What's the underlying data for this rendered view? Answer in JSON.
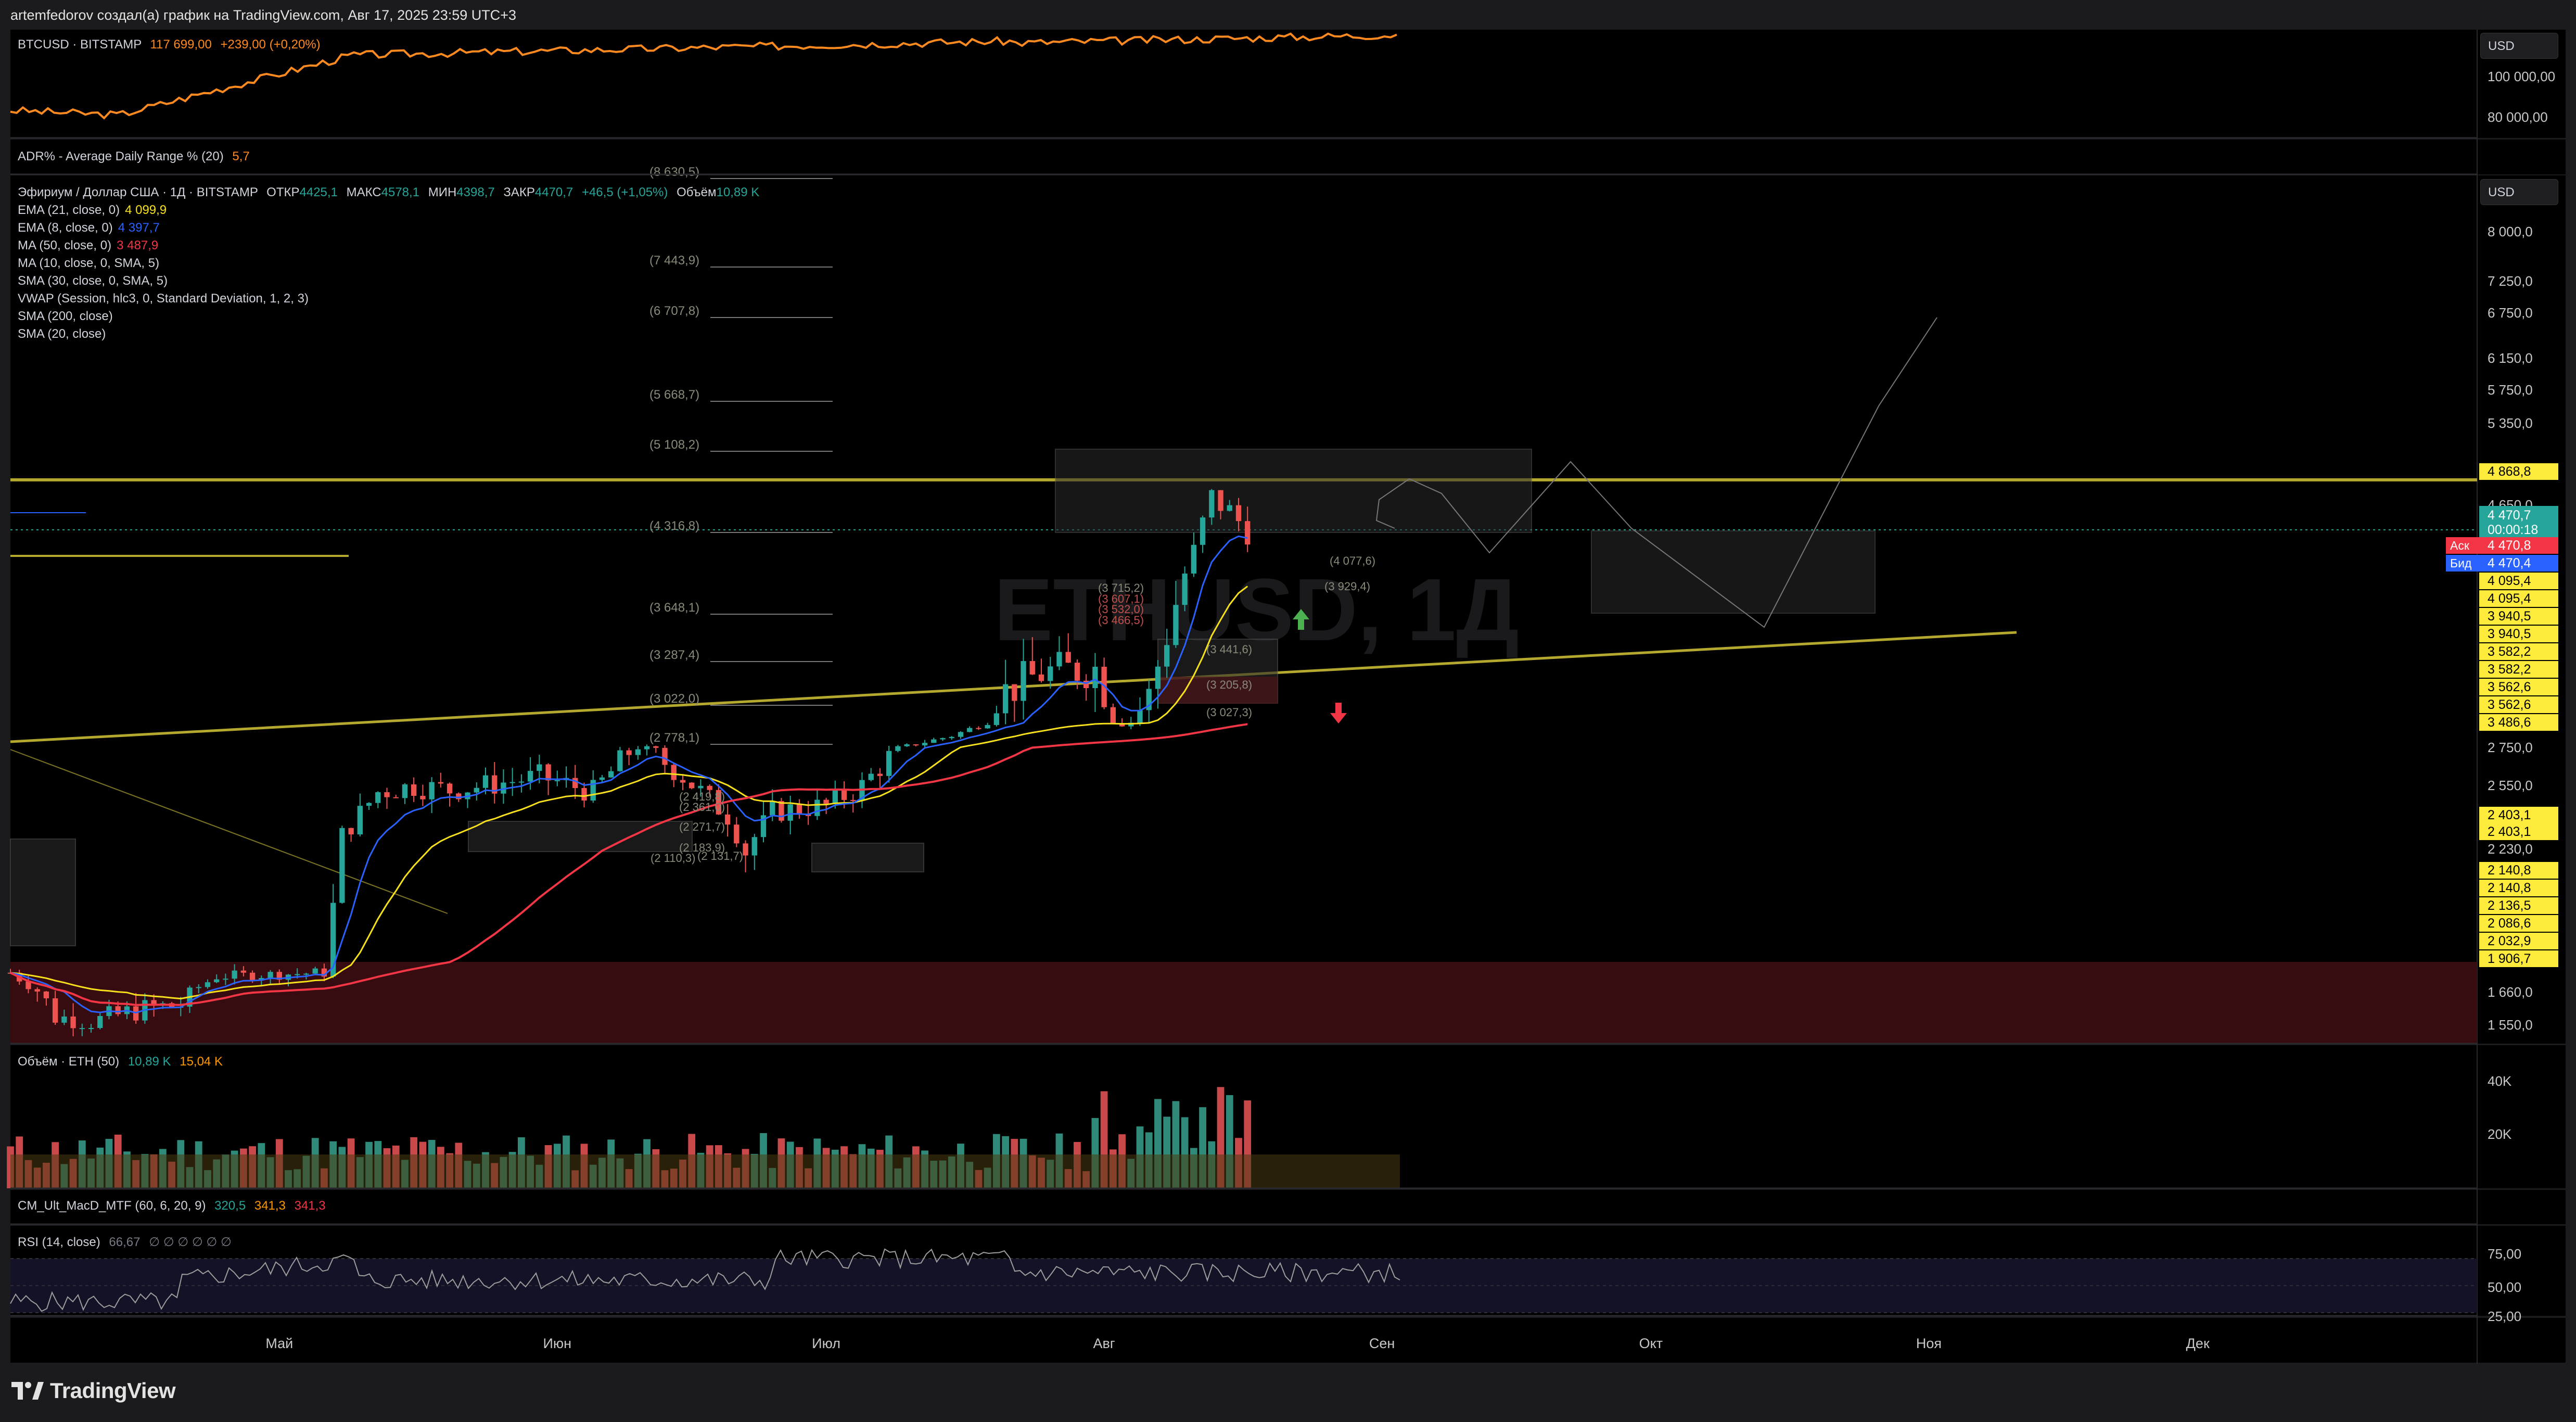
{
  "header": {
    "author_line": "artemfedorov создал(а) график на TradingView.com, Авг 17, 2025 23:59 UTC+3"
  },
  "btc_pane": {
    "label": "BTCUSD · BITSTAMP",
    "price": "117 699,00",
    "change": "+239,00 (+0,20%)",
    "currency": "USD",
    "ticks": [
      "100 000,00",
      "80 000,00"
    ],
    "color": "#ff8a1f"
  },
  "adr_pane": {
    "label": "ADR% - Average Daily Range % (20)",
    "value": "5,7"
  },
  "main_pane": {
    "currency": "USD",
    "title": "Эфириум / Доллар США · 1Д · BITSTAMP",
    "ohlc": [
      {
        "k": "ОТКР",
        "v": "4425,1"
      },
      {
        "k": "МАКС",
        "v": "4578,1"
      },
      {
        "k": "МИН",
        "v": "4398,7"
      },
      {
        "k": "ЗАКР",
        "v": "4470,7"
      }
    ],
    "change": "+46,5 (+1,05%)",
    "volume_label": "Объём",
    "volume_value": "10,89 K",
    "watermark": "ETHUSD, 1Д",
    "indicators": [
      {
        "label": "EMA (21, close, 0)",
        "value": "4 099,9",
        "color": "#f7e01c"
      },
      {
        "label": "EMA (8, close, 0)",
        "value": "4 397,7",
        "color": "#2962ff"
      },
      {
        "label": "MA (50, close, 0)",
        "value": "3 487,9",
        "color": "#f23645"
      },
      {
        "label": "MA (10, close, 0, SMA, 5)",
        "value": "",
        "color": ""
      },
      {
        "label": "SMA (30, close, 0, SMA, 5)",
        "value": "",
        "color": ""
      },
      {
        "label": "VWAP (Session, hlc3, 0, Standard Deviation, 1, 2, 3)",
        "value": "",
        "color": ""
      },
      {
        "label": "SMA (200, close)",
        "value": "",
        "color": ""
      },
      {
        "label": "SMA (20, close)",
        "value": "",
        "color": ""
      }
    ],
    "axis_ticks": [
      "8 000,0",
      "7 250,0",
      "6 750,0",
      "6 150,0",
      "5 750,0",
      "5 350,0",
      "4 650,0",
      "2 750,0",
      "2 550,0",
      "2 230,0",
      "1 660,0",
      "1 550,0"
    ],
    "price_badges": [
      "4 868,8",
      "4 095,4",
      "4 095,4",
      "3 940,5",
      "3 940,5",
      "3 582,2",
      "3 582,2",
      "3 562,6",
      "3 562,6",
      "3 486,6",
      "2 403,1",
      "2 403,1",
      "2 140,8",
      "2 140,8",
      "2 136,5",
      "2 086,6",
      "2 032,9",
      "1 906,7"
    ],
    "last_price": {
      "value": "4 470,7",
      "countdown": "00:00:18"
    },
    "ask": {
      "label": "Аск",
      "value": "4 470,8"
    },
    "bid": {
      "label": "Бид",
      "value": "4 470,4"
    },
    "fib_labels": [
      "(8 630,5)",
      "(7 443,9)",
      "(6 707,8)",
      "(5 668,7)",
      "(5 108,2)",
      "(4 316,8)",
      "(3 648,1)",
      "(3 287,4)",
      "(3 022,0)",
      "(2 778,1)"
    ],
    "small_labels": [
      "(3 715,2)",
      "(3 607,1)",
      "(3 532,0)",
      "(3 466,5)",
      "(3 441,6)",
      "(3 205,8)",
      "(3 027,3)",
      "(4 077,6)",
      "(3 929,4)",
      "(2 419,8)",
      "(2 361,0)",
      "(2 271,7)",
      "(2 183,9)",
      "(2 110,3)",
      "(2 131,7)"
    ],
    "colors": {
      "bull": "#26a69a",
      "bear": "#ef5350",
      "level": "#b5a82e",
      "zone": "#3a0d12"
    }
  },
  "volume_pane": {
    "label": "Объём · ETH (50)",
    "v1": "10,89 K",
    "v2": "15,04 K",
    "ticks": [
      "40K",
      "20K"
    ]
  },
  "macd_pane": {
    "label": "CM_Ult_MacD_MTF (60, 6, 20, 9)",
    "v1": "320,5",
    "v2": "341,3",
    "v3": "341,3"
  },
  "rsi_pane": {
    "label": "RSI (14, close)",
    "value": "66,67",
    "dots": "∅ ∅ ∅ ∅ ∅ ∅",
    "ticks": [
      "75,00",
      "50,00",
      "25,00"
    ]
  },
  "time_axis": [
    "Май",
    "Июн",
    "Июл",
    "Авг",
    "Сен",
    "Окт",
    "Ноя",
    "Дек"
  ],
  "footer": {
    "brand": "TradingView"
  },
  "chart_data": {
    "type": "candlestick",
    "title": "Эфириум / Доллар США · 1Д · BITSTAMP",
    "ylim": [
      1450,
      8700
    ],
    "annotations": [
      "Long-position tool",
      "Short-position tool",
      "Fibonacci extension"
    ],
    "key_levels": [
      4868.8,
      4095.4,
      3940.5,
      3582.2,
      3562.6,
      3486.6,
      2403.1,
      2140.8,
      2136.5,
      2086.6,
      2032.9,
      1906.7
    ],
    "close_path": [
      [
        "2025-04-01",
        1820
      ],
      [
        "2025-04-06",
        1580
      ],
      [
        "2025-04-10",
        1560
      ],
      [
        "2025-04-15",
        1600
      ],
      [
        "2025-04-20",
        1620
      ],
      [
        "2025-04-24",
        1790
      ],
      [
        "2025-04-28",
        1800
      ],
      [
        "2025-05-02",
        1810
      ],
      [
        "2025-05-06",
        1820
      ],
      [
        "2025-05-08",
        2300
      ],
      [
        "2025-05-12",
        2520
      ],
      [
        "2025-05-16",
        2550
      ],
      [
        "2025-05-20",
        2530
      ],
      [
        "2025-05-25",
        2560
      ],
      [
        "2025-05-30",
        2600
      ],
      [
        "2025-06-05",
        2520
      ],
      [
        "2025-06-10",
        2780
      ],
      [
        "2025-06-15",
        2600
      ],
      [
        "2025-06-20",
        2400
      ],
      [
        "2025-06-22",
        2230
      ],
      [
        "2025-06-25",
        2420
      ],
      [
        "2025-07-01",
        2450
      ],
      [
        "2025-07-05",
        2550
      ],
      [
        "2025-07-10",
        2800
      ],
      [
        "2025-07-15",
        3100
      ],
      [
        "2025-07-20",
        3600
      ],
      [
        "2025-07-25",
        3700
      ],
      [
        "2025-07-31",
        3720
      ],
      [
        "2025-08-03",
        3440
      ],
      [
        "2025-08-06",
        3600
      ],
      [
        "2025-08-09",
        4000
      ],
      [
        "2025-08-11",
        4300
      ],
      [
        "2025-08-13",
        4720
      ],
      [
        "2025-08-15",
        4600
      ],
      [
        "2025-08-17",
        4470.7
      ]
    ]
  }
}
